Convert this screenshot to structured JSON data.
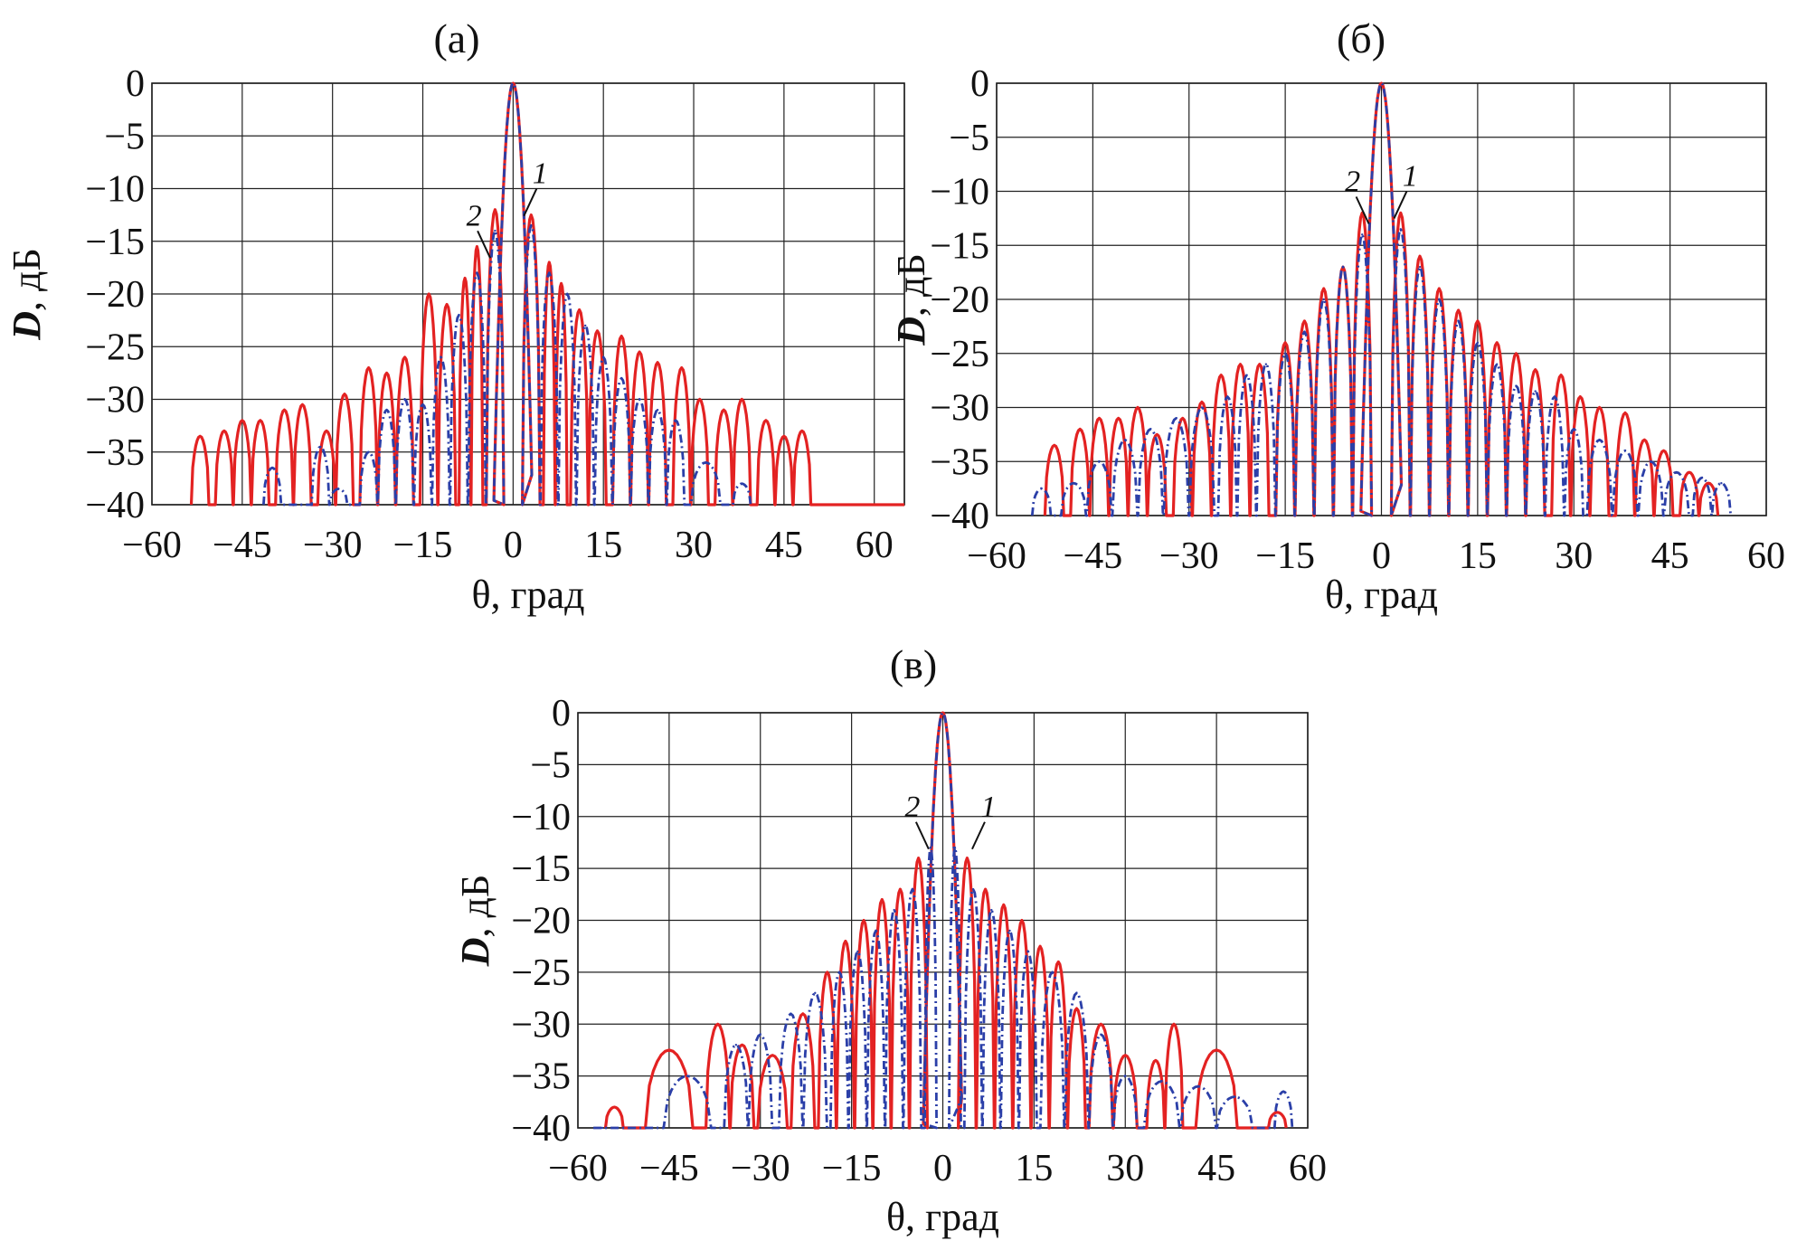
{
  "chart_data": [
    {
      "type": "line",
      "panel_label": "(а)",
      "xlabel_var": "θ",
      "xlabel_unit": ", град",
      "ylabel_var": "D",
      "ylabel_unit": ", дБ",
      "xlim": [
        -60,
        65
      ],
      "ylim": [
        -40,
        0
      ],
      "xticks": [
        -60,
        -45,
        -30,
        -15,
        0,
        15,
        30,
        45,
        60
      ],
      "xtick_labels": [
        "−60",
        "−45",
        "−30",
        "−15",
        "0",
        "15",
        "30",
        "45",
        "60"
      ],
      "yticks": [
        0,
        -5,
        -10,
        -15,
        -20,
        -25,
        -30,
        -35,
        -40
      ],
      "ytick_labels": [
        "0",
        "−5",
        "−10",
        "−15",
        "−20",
        "−25",
        "−30",
        "−35",
        "−40"
      ],
      "grid": true,
      "annotations": [
        {
          "text": "1",
          "x": 4.5,
          "y": -9.5
        },
        {
          "text": "2",
          "x": -6.5,
          "y": -13.5
        }
      ],
      "series": [
        {
          "name": "1",
          "color": "#e32222",
          "style": "solid",
          "x": [
            -52,
            -48,
            -45,
            -42,
            -38,
            -35,
            -31,
            -28,
            -24,
            -21,
            -18,
            -14,
            -11,
            -8,
            -6,
            -3,
            3,
            6,
            8,
            11,
            14,
            18,
            21,
            24,
            28,
            31,
            35,
            38,
            42,
            45,
            48
          ],
          "y": [
            -33.5,
            -33,
            -32,
            -32,
            -31,
            -30.5,
            -33,
            -29.5,
            -27,
            -27.5,
            -26,
            -20,
            -21,
            -18.5,
            -15.5,
            -12,
            -12.5,
            -17,
            -19,
            -21.5,
            -23.5,
            -24,
            -25.5,
            -26.5,
            -27,
            -30,
            -31,
            -30,
            -32,
            -33.5,
            -33
          ],
          "floor_end": 65
        },
        {
          "name": "2",
          "color": "#2b3fa8",
          "style": "dashdot",
          "x": [
            -40,
            -32,
            -29,
            -24,
            -21,
            -18,
            -15,
            -12,
            -9,
            -6,
            -3,
            3,
            6,
            9,
            12,
            15,
            18,
            21,
            24,
            27,
            32,
            38
          ],
          "y": [
            -36.5,
            -34.5,
            -38.5,
            -35,
            -31,
            -30,
            -30.5,
            -26,
            -22,
            -18,
            -14,
            -13.5,
            -18,
            -20,
            -23,
            -26,
            -28,
            -30,
            -31,
            -32,
            -36,
            -38
          ]
        }
      ]
    },
    {
      "type": "line",
      "panel_label": "(б)",
      "xlabel_var": "θ",
      "xlabel_unit": ", град",
      "ylabel_var": "D",
      "ylabel_unit": ", дБ",
      "xlim": [
        -60,
        60
      ],
      "ylim": [
        -40,
        0
      ],
      "xticks": [
        -60,
        -45,
        -30,
        -15,
        0,
        15,
        30,
        45,
        60
      ],
      "xtick_labels": [
        "−60",
        "−45",
        "−30",
        "−15",
        "0",
        "15",
        "30",
        "45",
        "60"
      ],
      "yticks": [
        0,
        -5,
        -10,
        -15,
        -20,
        -25,
        -30,
        -35,
        -40
      ],
      "ytick_labels": [
        "0",
        "−5",
        "−10",
        "−15",
        "−20",
        "−25",
        "−30",
        "−35",
        "−40"
      ],
      "grid": true,
      "annotations": [
        {
          "text": "1",
          "x": 4.5,
          "y": -9.5
        },
        {
          "text": "2",
          "x": -4.5,
          "y": -10
        }
      ],
      "series": [
        {
          "name": "1",
          "color": "#e32222",
          "style": "solid",
          "x": [
            -51,
            -47,
            -44,
            -41,
            -38,
            -35,
            -31,
            -28,
            -25,
            -22,
            -19,
            -15,
            -12,
            -9,
            -6,
            -3,
            3,
            6,
            9,
            12,
            15,
            18,
            21,
            24,
            28,
            31,
            34,
            38,
            41,
            44,
            48,
            51
          ],
          "y": [
            -33.5,
            -32,
            -31,
            -31,
            -30,
            -32.5,
            -31,
            -29.5,
            -27,
            -26,
            -26,
            -24,
            -22,
            -19,
            -17,
            -12,
            -12,
            -16,
            -19,
            -21,
            -22,
            -24,
            -25,
            -26.5,
            -27,
            -29,
            -30,
            -30.5,
            -33,
            -34,
            -36,
            -37
          ]
        },
        {
          "name": "2",
          "color": "#2b3fa8",
          "style": "dashdot",
          "x": [
            -53,
            -48,
            -44,
            -40,
            -36,
            -32,
            -28,
            -24,
            -21,
            -18,
            -15,
            -12,
            -9,
            -6,
            -3,
            3,
            6,
            9,
            12,
            15,
            18,
            21,
            24,
            27,
            30,
            34,
            38,
            42,
            46,
            50,
            53
          ],
          "y": [
            -37.5,
            -37,
            -35,
            -33,
            -32,
            -31,
            -30,
            -29,
            -27,
            -26,
            -25,
            -23,
            -20,
            -17,
            -14,
            -13.5,
            -17,
            -20,
            -22,
            -24,
            -26,
            -28,
            -28.5,
            -29,
            -32,
            -33,
            -34,
            -35,
            -36,
            -36.5,
            -37
          ]
        }
      ]
    },
    {
      "type": "line",
      "panel_label": "(в)",
      "xlabel_var": "θ",
      "xlabel_unit": ", град",
      "ylabel_var": "D",
      "ylabel_unit": ", дБ",
      "xlim": [
        -60,
        60
      ],
      "ylim": [
        -40,
        0
      ],
      "xticks": [
        -60,
        -45,
        -30,
        -15,
        0,
        15,
        30,
        45,
        60
      ],
      "xtick_labels": [
        "−60",
        "−45",
        "−30",
        "−15",
        "0",
        "15",
        "30",
        "45",
        "60"
      ],
      "yticks": [
        0,
        -5,
        -10,
        -15,
        -20,
        -25,
        -30,
        -35,
        -40
      ],
      "ytick_labels": [
        "0",
        "−5",
        "−10",
        "−15",
        "−20",
        "−25",
        "−30",
        "−35",
        "−40"
      ],
      "grid": true,
      "annotations": [
        {
          "text": "1",
          "x": 7.5,
          "y": -10
        },
        {
          "text": "2",
          "x": -5,
          "y": -10
        }
      ],
      "series": [
        {
          "name": "1",
          "color": "#e32222",
          "style": "solid",
          "x": [
            -54,
            -45,
            -37,
            -33,
            -28,
            -23,
            -19,
            -16,
            -13,
            -10,
            -7,
            -4,
            4,
            7,
            10,
            13,
            16,
            19,
            22,
            26,
            30,
            35,
            38,
            45,
            55
          ],
          "y": [
            -38,
            -32.5,
            -30,
            -32,
            -33,
            -29,
            -25,
            -22,
            -20,
            -18,
            -17,
            -14,
            -14,
            -17,
            -18.5,
            -20,
            -22.5,
            -24,
            -28.5,
            -30,
            -33,
            -33.5,
            -30,
            -32.5,
            -38.5
          ]
        },
        {
          "name": "2",
          "color": "#2b3fa8",
          "style": "dashdot",
          "x": [
            -56,
            -42,
            -34,
            -30,
            -25,
            -21,
            -17,
            -14,
            -11,
            -8,
            -5,
            -2,
            2,
            5,
            8,
            11,
            14,
            18,
            22,
            26,
            30,
            36,
            42,
            48,
            56
          ],
          "y": [
            -40,
            -35,
            -32,
            -31,
            -29,
            -27,
            -25,
            -23,
            -21,
            -19,
            -17,
            -13,
            -13,
            -17,
            -19,
            -21,
            -23,
            -25,
            -27,
            -31,
            -35,
            -35.5,
            -36,
            -37,
            -36.5
          ]
        }
      ]
    }
  ]
}
